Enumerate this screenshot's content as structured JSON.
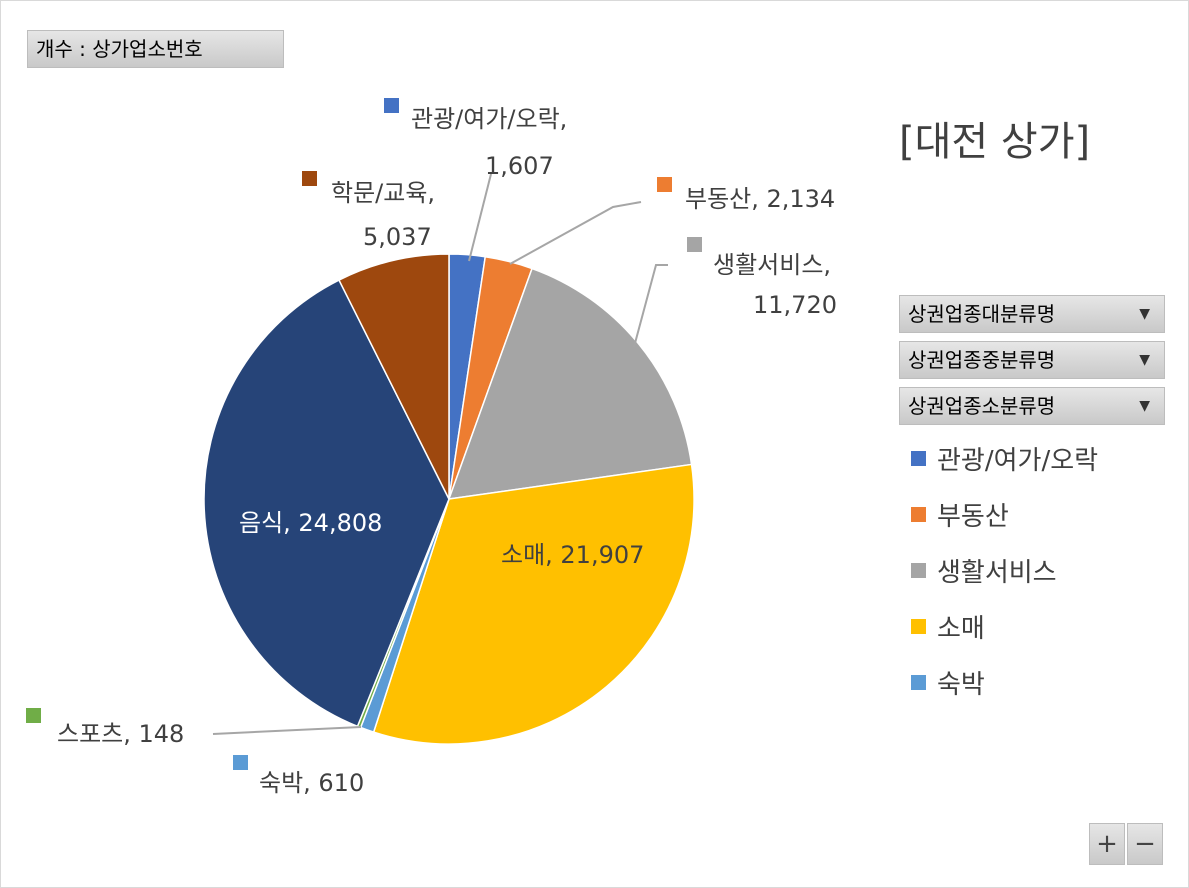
{
  "value_field": "개수 : 상가업소번호",
  "row_fields": [
    "상권업종대분류명",
    "상권업종중분류명",
    "상권업종소분류명"
  ],
  "zoom": {
    "plus": "+",
    "minus": "−"
  },
  "chart_data": {
    "type": "pie",
    "title": "[대전 상가]",
    "legend_position": "right",
    "slices": [
      {
        "label": "관광/여가/오락",
        "value": 1607,
        "value_text": "1,607",
        "color": "#4472c4"
      },
      {
        "label": "부동산",
        "value": 2134,
        "value_text": "2,134",
        "color": "#ed7d31"
      },
      {
        "label": "생활서비스",
        "value": 11720,
        "value_text": "11,720",
        "color": "#a5a5a5"
      },
      {
        "label": "소매",
        "value": 21907,
        "value_text": "21,907",
        "color": "#ffc000"
      },
      {
        "label": "숙박",
        "value": 610,
        "value_text": "610",
        "color": "#5b9bd5"
      },
      {
        "label": "스포츠",
        "value": 148,
        "value_text": "148",
        "color": "#70ad47"
      },
      {
        "label": "음식",
        "value": 24808,
        "value_text": "24,808",
        "color": "#264478"
      },
      {
        "label": "학문/교육",
        "value": 5037,
        "value_text": "5,037",
        "color": "#9e480e"
      }
    ],
    "legend_entries": [
      "관광/여가/오락",
      "부동산",
      "생활서비스",
      "소매",
      "숙박"
    ]
  }
}
